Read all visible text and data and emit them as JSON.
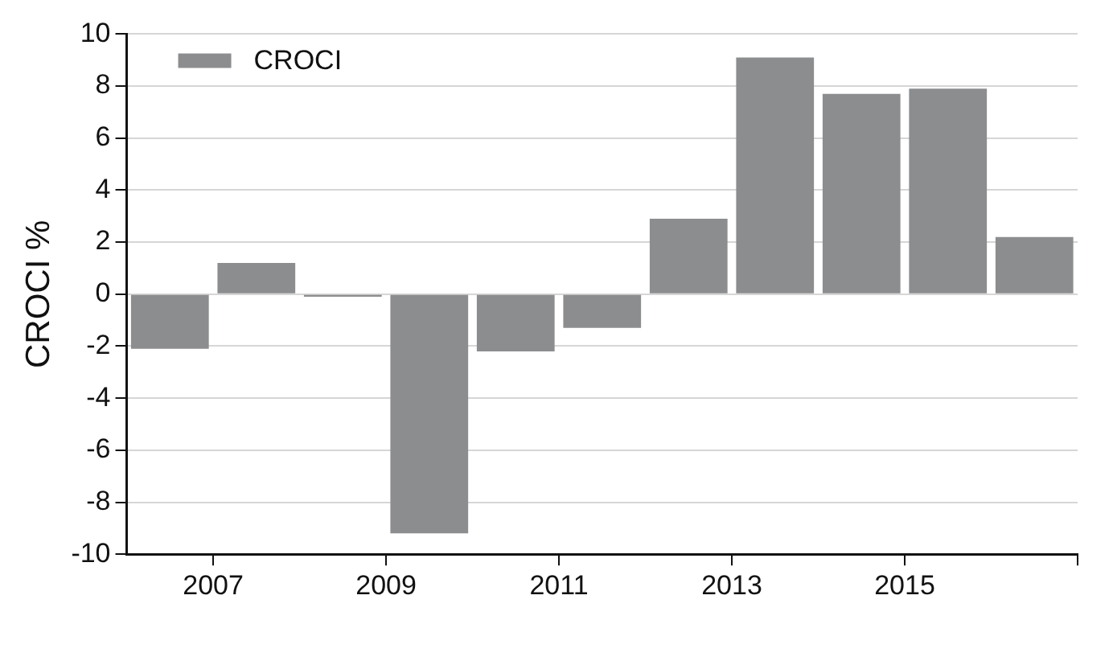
{
  "chart_data": {
    "type": "bar",
    "ylabel": "CROCI %",
    "x": [
      2006.5,
      2007.5,
      2008.5,
      2009.5,
      2010.5,
      2011.5,
      2012.5,
      2013.5,
      2014.5,
      2015.5,
      2016.5
    ],
    "series": [
      {
        "name": "CROCI",
        "color": "#8c8d8f",
        "values": [
          -2.1,
          1.2,
          -0.1,
          -9.2,
          -2.2,
          -1.3,
          2.9,
          9.1,
          7.7,
          7.9,
          2.2
        ]
      }
    ],
    "xlim": [
      2006,
      2017
    ],
    "xticks": [
      2007,
      2009,
      2011,
      2013,
      2015,
      {
        "value": 2017,
        "label": null
      }
    ],
    "ylim": [
      -10,
      10
    ],
    "yticks": [
      -10,
      -8,
      -6,
      -4,
      -2,
      0,
      2,
      4,
      6,
      8,
      10
    ],
    "grid": "y",
    "legend": "top left"
  }
}
